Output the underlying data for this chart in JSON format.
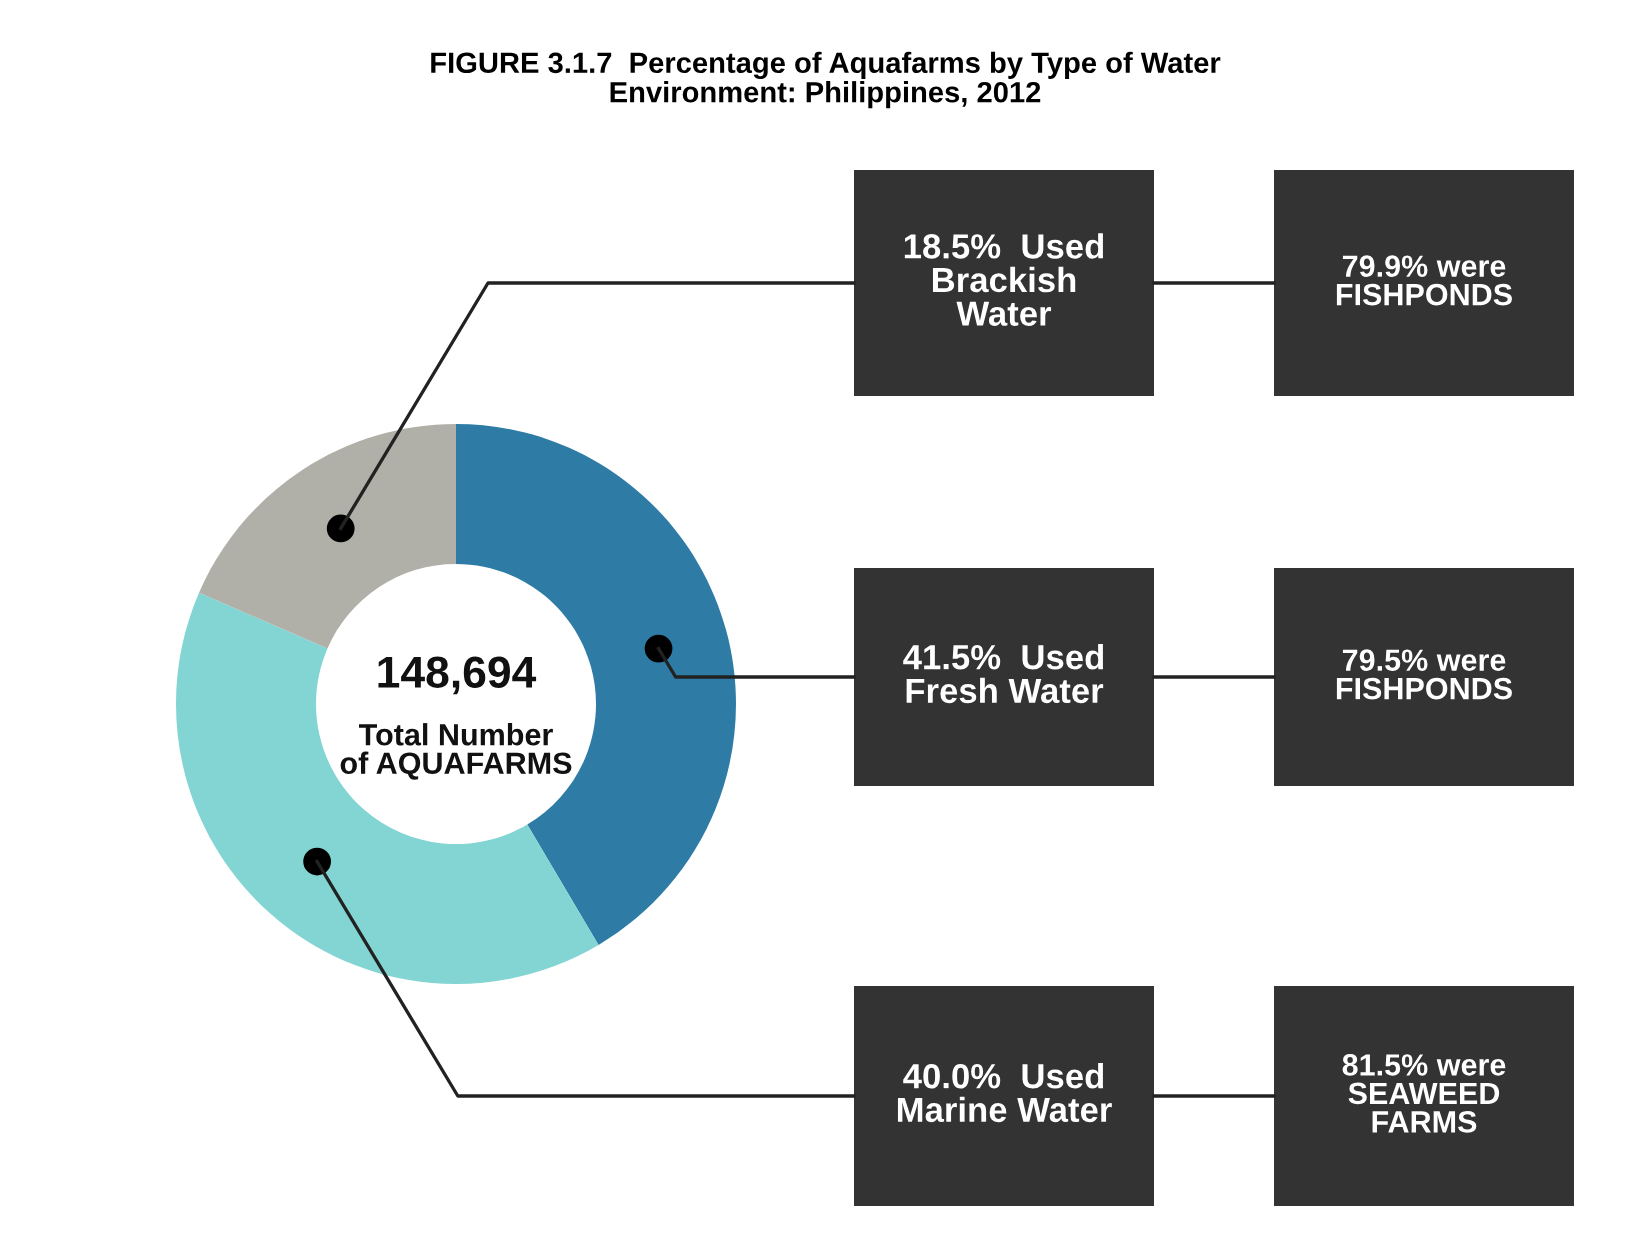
{
  "chart_data": {
    "type": "donut",
    "title": "FIGURE 3.1.7  Percentage of Aquafarms by Type of Water\nEnvironment: Philippines, 2012",
    "categories": [
      null,
      null,
      null
    ],
    "values": [
      41.5,
      40.0,
      18.5
    ],
    "colors": [
      "#2e7ca6",
      "#82d5d3",
      "#b0b0a8"
    ],
    "annotations": [
      "148,694",
      "Total Number\nof AQUAFARMS",
      "41.5%  Used\nFresh Water",
      "40.0%  Used\nMarine Water",
      "18.5%  Used\nBrackish\nWater",
      "79.5% were\nFISHPONDS",
      "81.5% were\nSEAWEED\nFARMS",
      "79.9% were\nFISHPONDS"
    ]
  }
}
